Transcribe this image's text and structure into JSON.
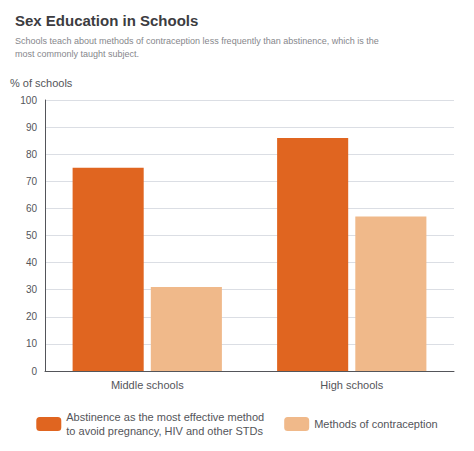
{
  "chart_data": {
    "type": "bar",
    "title": "Sex Education in Schools",
    "subtitle": "Schools teach about methods of contraception less frequently than abstinence, which is the\nmost commonly taught subject.",
    "ylabel": "% of schools",
    "categories": [
      "Middle schools",
      "High schools"
    ],
    "series": [
      {
        "name": "Abstinence as the most effective method\nto avoid pregnancy, HIV and other STDs",
        "values": [
          75,
          86
        ],
        "color": "#e06520"
      },
      {
        "name": "Methods of contraception",
        "values": [
          31,
          57
        ],
        "color": "#f0b98a"
      }
    ],
    "ylim": [
      0,
      100
    ],
    "yticks": [
      0,
      10,
      20,
      30,
      40,
      50,
      60,
      70,
      80,
      90,
      100
    ],
    "grid": true,
    "legend": "bottom"
  }
}
